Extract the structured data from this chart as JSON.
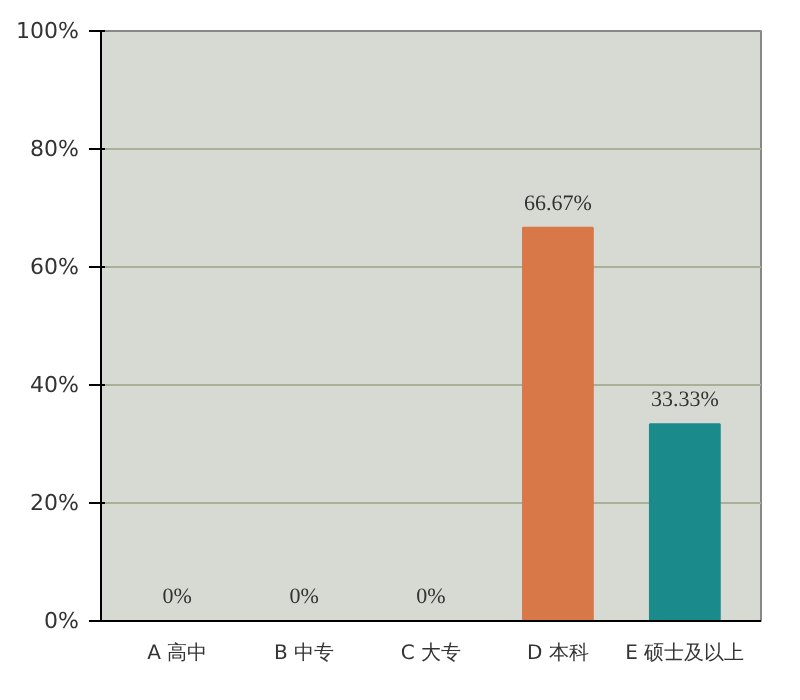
{
  "chart_data": {
    "type": "bar",
    "categories": [
      "A 高中",
      "B 中专",
      "C 大专",
      "D 本科",
      "E 硕士及以上"
    ],
    "values": [
      0,
      0,
      0,
      66.67,
      33.33
    ],
    "colors": [
      "#a8c8e8",
      "#e8b840",
      "#8cb840",
      "#d87848",
      "#1a8a8a"
    ],
    "value_labels": [
      "0%",
      "0%",
      "0%",
      "66.67%",
      "33.33%"
    ],
    "ylim": [
      0,
      100
    ],
    "yticks": [
      {
        "value": 0,
        "label": "0%"
      },
      {
        "value": 20,
        "label": "20%"
      },
      {
        "value": 40,
        "label": "40%"
      },
      {
        "value": 60,
        "label": "60%"
      },
      {
        "value": 80,
        "label": "80%"
      },
      {
        "value": 100,
        "label": "100%"
      }
    ],
    "grid": "y"
  }
}
